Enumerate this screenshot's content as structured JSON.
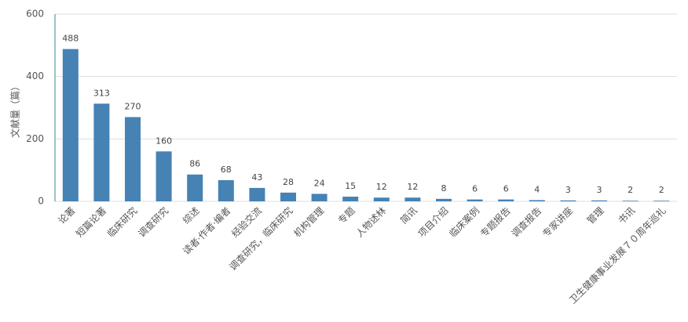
{
  "chart_data": {
    "type": "bar",
    "y_label": "文献量（篇）",
    "categories": [
      "论著",
      "短篇论著",
      "临床研究",
      "调查研究",
      "综述",
      "读者·作者·编者",
      "经验交流",
      "调查研究，临床研究",
      "机构管理",
      "专题",
      "人物述林",
      "简讯",
      "项目介绍",
      "临床案例",
      "专题报告",
      "调查报告",
      "专家讲座",
      "管理",
      "书讯",
      "卫生健康事业发展７０周年巡礼"
    ],
    "values": [
      488,
      313,
      270,
      160,
      86,
      68,
      43,
      28,
      24,
      15,
      12,
      12,
      8,
      6,
      6,
      4,
      3,
      3,
      2,
      2
    ],
    "color": "#4682b4",
    "ylim": [
      0,
      600
    ],
    "yticks": [
      0,
      200,
      400,
      600
    ],
    "grid": true
  }
}
